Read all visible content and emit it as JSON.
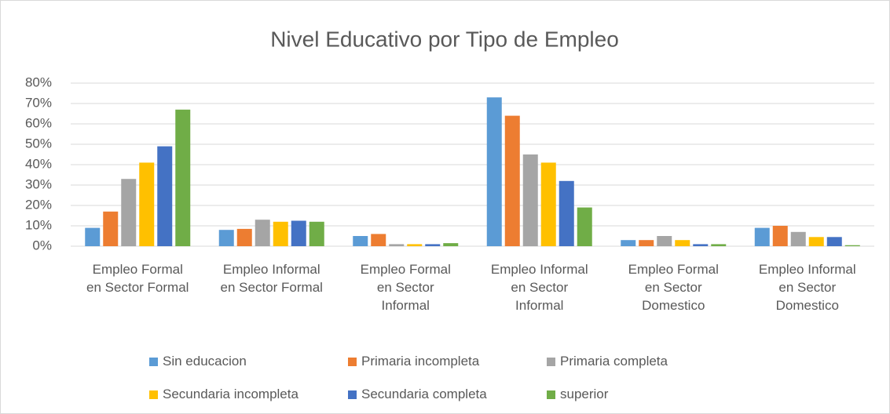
{
  "chart_data": {
    "type": "bar",
    "title": "Nivel Educativo por Tipo de Empleo",
    "categories": [
      "Empleo Formal\nen Sector Formal",
      "Empleo Informal\nen Sector Formal",
      "Empleo Formal\nen Sector\nInformal",
      "Empleo Informal\nen Sector\nInformal",
      "Empleo Formal\nen Sector\nDomestico",
      "Empleo Informal\nen Sector\nDomestico"
    ],
    "series": [
      {
        "name": "Sin educacion",
        "color": "#5b9bd5",
        "values": [
          9,
          8,
          5,
          73,
          3,
          9
        ]
      },
      {
        "name": "Primaria incompleta",
        "color": "#ed7d31",
        "values": [
          17,
          8.5,
          6,
          64,
          3,
          10
        ]
      },
      {
        "name": "Primaria completa",
        "color": "#a5a5a5",
        "values": [
          33,
          13,
          1,
          45,
          5,
          7
        ]
      },
      {
        "name": "Secundaria incompleta",
        "color": "#ffc000",
        "values": [
          41,
          12,
          1,
          41,
          3,
          4.5
        ]
      },
      {
        "name": "Secundaria completa",
        "color": "#4472c4",
        "values": [
          49,
          12.5,
          1,
          32,
          1,
          4.5
        ]
      },
      {
        "name": "superior",
        "color": "#70ad47",
        "values": [
          67,
          12,
          1.5,
          19,
          1,
          0.5
        ]
      }
    ],
    "ylim": [
      0,
      80
    ],
    "yticks": [
      {
        "value": 0,
        "label": "0%"
      },
      {
        "value": 10,
        "label": "10%"
      },
      {
        "value": 20,
        "label": "20%"
      },
      {
        "value": 30,
        "label": "30%"
      },
      {
        "value": 40,
        "label": "40%"
      },
      {
        "value": 50,
        "label": "50%"
      },
      {
        "value": 60,
        "label": "60%"
      },
      {
        "value": 70,
        "label": "70%"
      },
      {
        "value": 80,
        "label": "80%"
      }
    ],
    "grid": true,
    "legend": "bottom"
  }
}
